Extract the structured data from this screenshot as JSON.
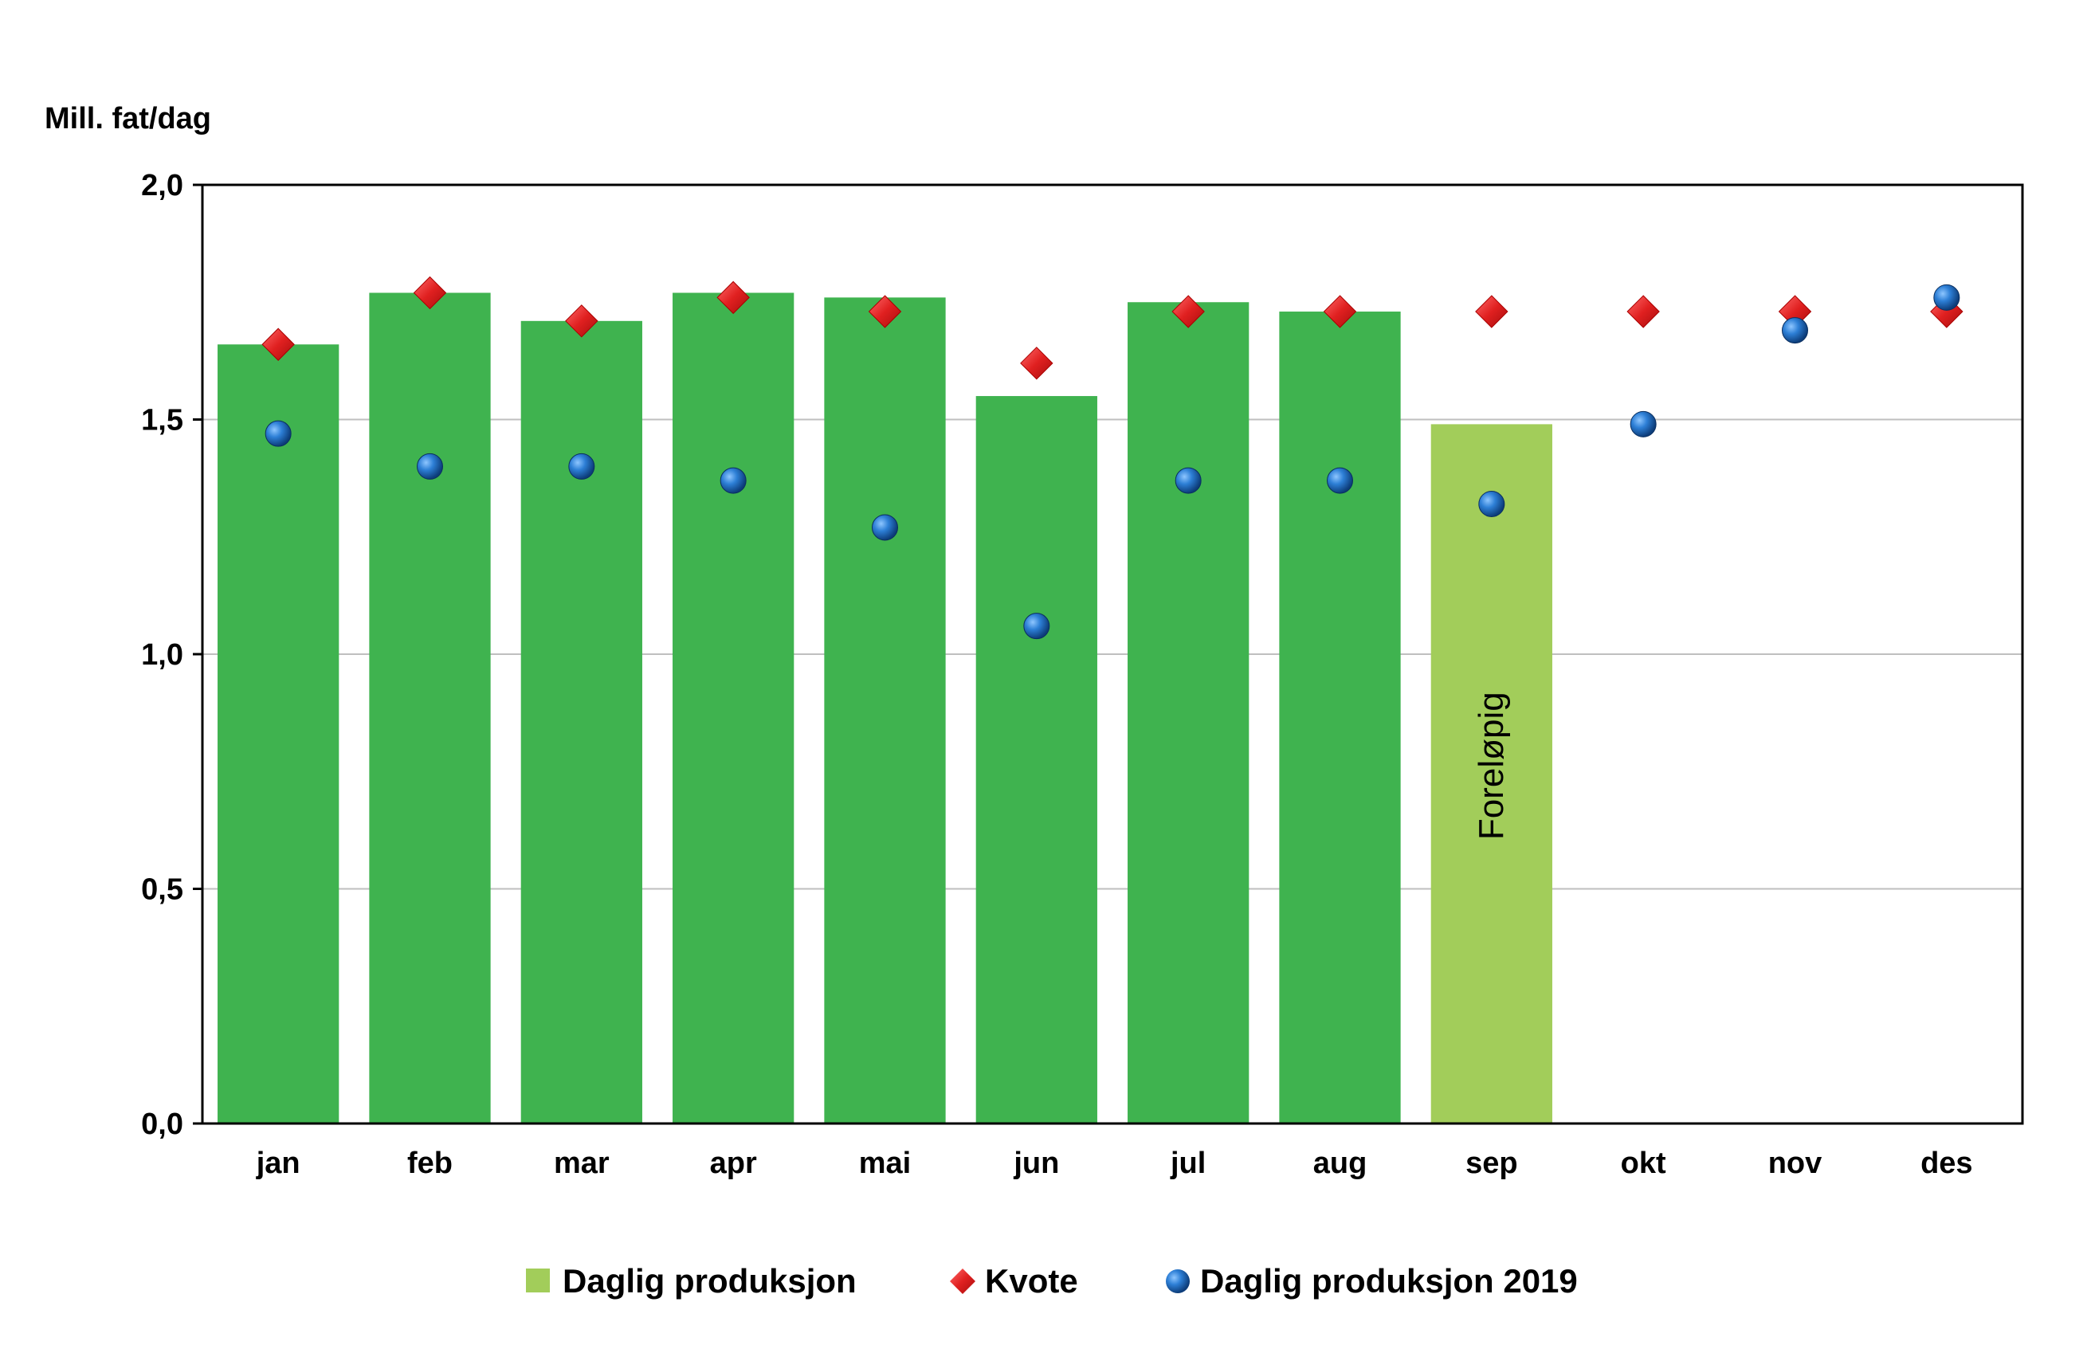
{
  "chart_data": {
    "type": "bar",
    "ylabel": "Mill. fat/dag",
    "ylim": [
      0,
      2.0
    ],
    "yticks": [
      "0,0",
      "0,5",
      "1,0",
      "1,5",
      "2,0"
    ],
    "ytick_values": [
      0,
      0.5,
      1.0,
      1.5,
      2.0
    ],
    "grid": "horizontal",
    "categories": [
      "jan",
      "feb",
      "mar",
      "apr",
      "mai",
      "jun",
      "jul",
      "aug",
      "sep",
      "okt",
      "nov",
      "des"
    ],
    "series": [
      {
        "name": "Daglig produksjon",
        "kind": "bar",
        "color": "#3fb34f",
        "preliminary_color": "#a2cd5a",
        "values": [
          1.66,
          1.77,
          1.71,
          1.77,
          1.76,
          1.55,
          1.75,
          1.73,
          1.49,
          null,
          null,
          null
        ],
        "preliminary": [
          false,
          false,
          false,
          false,
          false,
          false,
          false,
          false,
          true,
          false,
          false,
          false
        ]
      },
      {
        "name": "Kvote",
        "kind": "diamond",
        "color": "#e02020",
        "values": [
          1.66,
          1.77,
          1.71,
          1.76,
          1.73,
          1.62,
          1.73,
          1.73,
          1.73,
          1.73,
          1.73,
          1.73
        ]
      },
      {
        "name": "Daglig produksjon 2019",
        "kind": "circle",
        "color": "#1f6fc0",
        "values": [
          1.47,
          1.4,
          1.4,
          1.37,
          1.27,
          1.06,
          1.37,
          1.37,
          1.32,
          1.49,
          1.69,
          1.76
        ]
      }
    ],
    "annotation": "Foreløpig",
    "legend": "bottom"
  }
}
